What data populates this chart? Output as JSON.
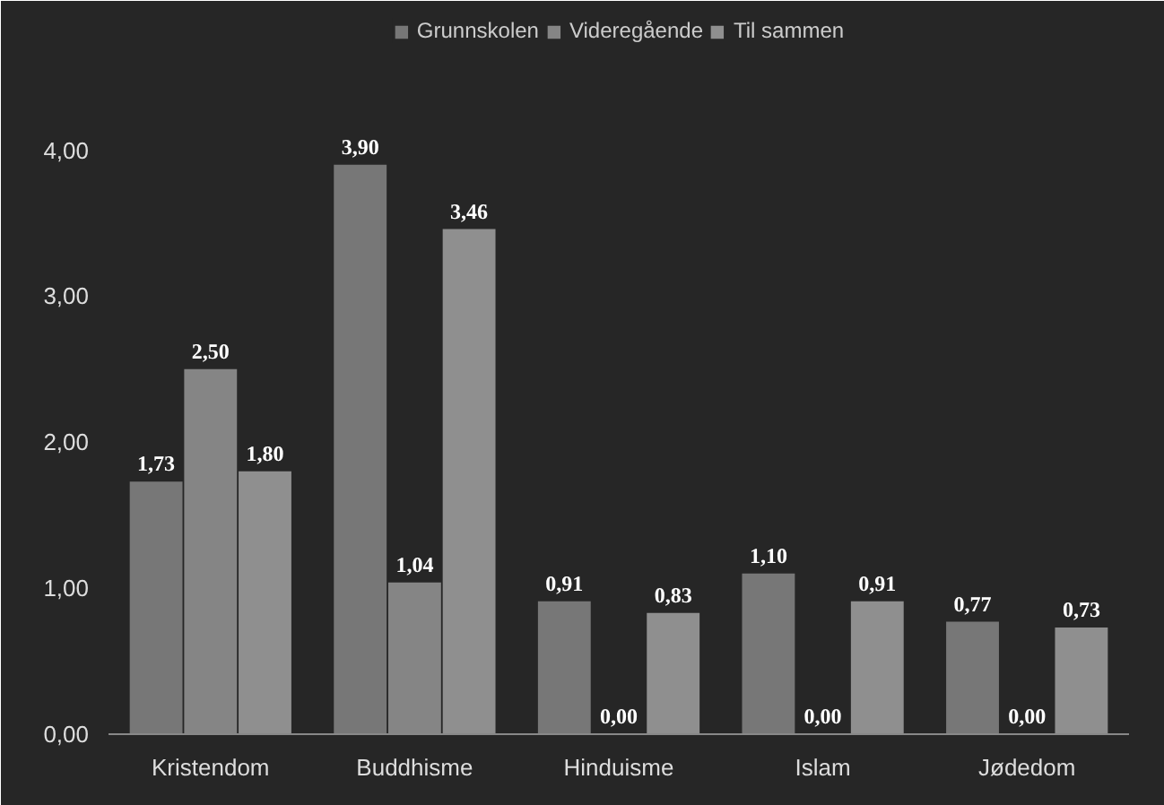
{
  "chart_data": {
    "type": "bar",
    "categories": [
      "Kristendom",
      "Buddhisme",
      "Hinduisme",
      "Islam",
      "Jødedom"
    ],
    "series": [
      {
        "name": "Grunnskolen",
        "color": "#777777",
        "values": [
          1.73,
          3.9,
          0.91,
          1.1,
          0.77
        ],
        "value_labels": [
          "1,73",
          "3,90",
          "0,91",
          "1,10",
          "0,77"
        ]
      },
      {
        "name": "Videregående",
        "color": "#858585",
        "values": [
          2.5,
          1.04,
          0.0,
          0.0,
          0.0
        ],
        "value_labels": [
          "2,50",
          "1,04",
          "0,00",
          "0,00",
          "0,00"
        ]
      },
      {
        "name": "Til sammen",
        "color": "#8f8f8f",
        "values": [
          1.8,
          3.46,
          0.83,
          0.91,
          0.73
        ],
        "value_labels": [
          "1,80",
          "3,46",
          "0,83",
          "0,91",
          "0,73"
        ]
      }
    ],
    "ylim": [
      0,
      4.9
    ],
    "yticks": [
      {
        "value": 0,
        "label": "0,00"
      },
      {
        "value": 1,
        "label": "1,00"
      },
      {
        "value": 2,
        "label": "2,00"
      },
      {
        "value": 3,
        "label": "3,00"
      },
      {
        "value": 4,
        "label": "4,00"
      }
    ],
    "grid": false,
    "legend": "top"
  }
}
